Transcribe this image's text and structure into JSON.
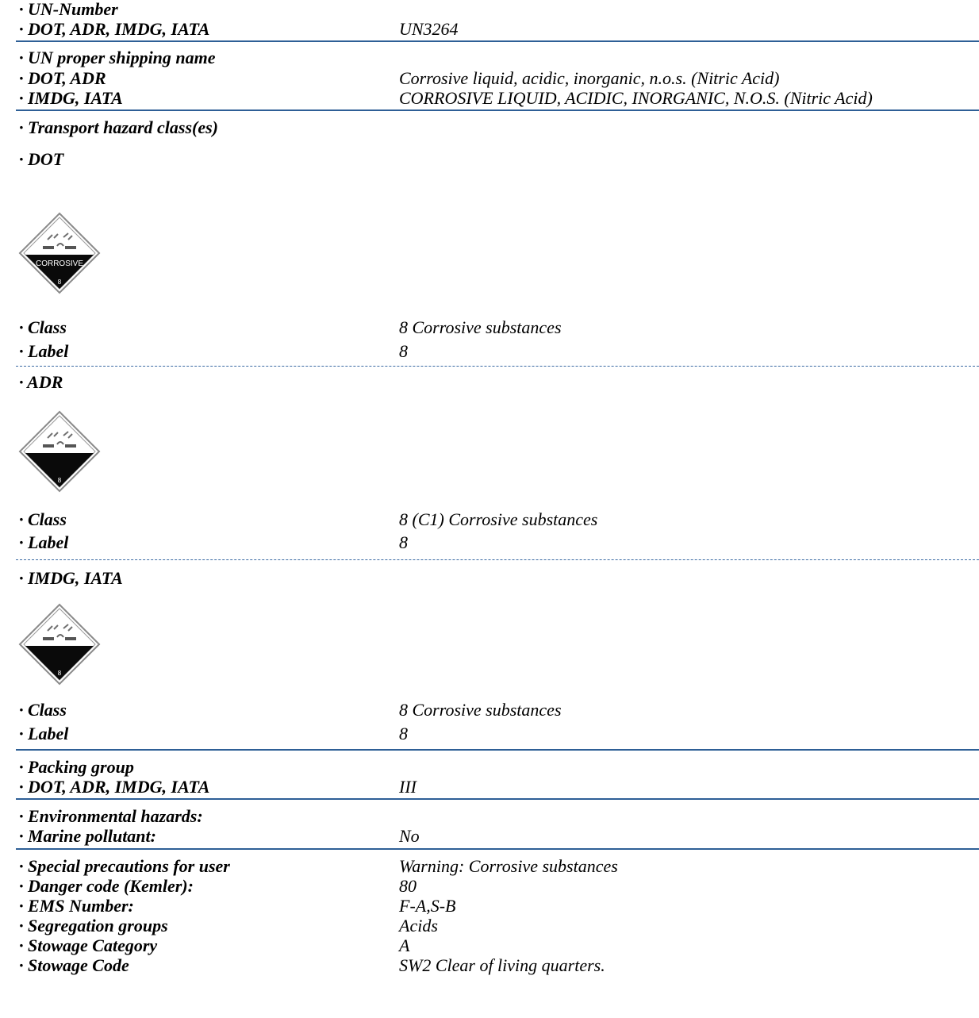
{
  "un_number": {
    "heading": "· UN-Number",
    "label": "· DOT, ADR, IMDG, IATA",
    "value": "UN3264"
  },
  "shipping_name": {
    "heading": "· UN proper shipping name",
    "rows": [
      {
        "label": "· DOT, ADR",
        "value": "Corrosive liquid, acidic, inorganic, n.o.s. (Nitric Acid)"
      },
      {
        "label": "· IMDG, IATA",
        "value": "CORROSIVE LIQUID, ACIDIC, INORGANIC, N.O.S. (Nitric Acid)"
      }
    ]
  },
  "hazard_class": {
    "heading": "· Transport hazard class(es)",
    "groups": [
      {
        "title": "· DOT",
        "placard": {
          "icon": "corrosive-placard-icon",
          "text": "CORROSIVE",
          "number": "8"
        },
        "class_label": "· Class",
        "class_value": "8 Corrosive substances",
        "label_label": "· Label",
        "label_value": "8"
      },
      {
        "title": "· ADR",
        "placard": {
          "icon": "corrosive-placard-icon",
          "number": "8"
        },
        "class_label": "· Class",
        "class_value": "8 (C1) Corrosive substances",
        "label_label": "· Label",
        "label_value": "8"
      },
      {
        "title": "· IMDG, IATA",
        "placard": {
          "icon": "corrosive-placard-icon",
          "number": "8"
        },
        "class_label": "· Class",
        "class_value": "8 Corrosive substances",
        "label_label": "· Label",
        "label_value": "8"
      }
    ]
  },
  "packing_group": {
    "heading": "· Packing group",
    "label": "· DOT, ADR, IMDG, IATA",
    "value": "III"
  },
  "environmental": {
    "heading": "· Environmental hazards:",
    "label": "· Marine pollutant:",
    "value": "No"
  },
  "special": {
    "rows": [
      {
        "label": "· Special precautions for user",
        "value": "Warning: Corrosive substances"
      },
      {
        "label": "· Danger code (Kemler):",
        "value": "80"
      },
      {
        "label": "· EMS Number:",
        "value": "F-A,S-B"
      },
      {
        "label": "· Segregation groups",
        "value": "Acids"
      },
      {
        "label": "· Stowage Category",
        "value": "A"
      },
      {
        "label": "· Stowage Code",
        "value": "SW2 Clear of living quarters."
      }
    ]
  },
  "colors": {
    "rule": "#2e5f96",
    "text": "#000000"
  }
}
